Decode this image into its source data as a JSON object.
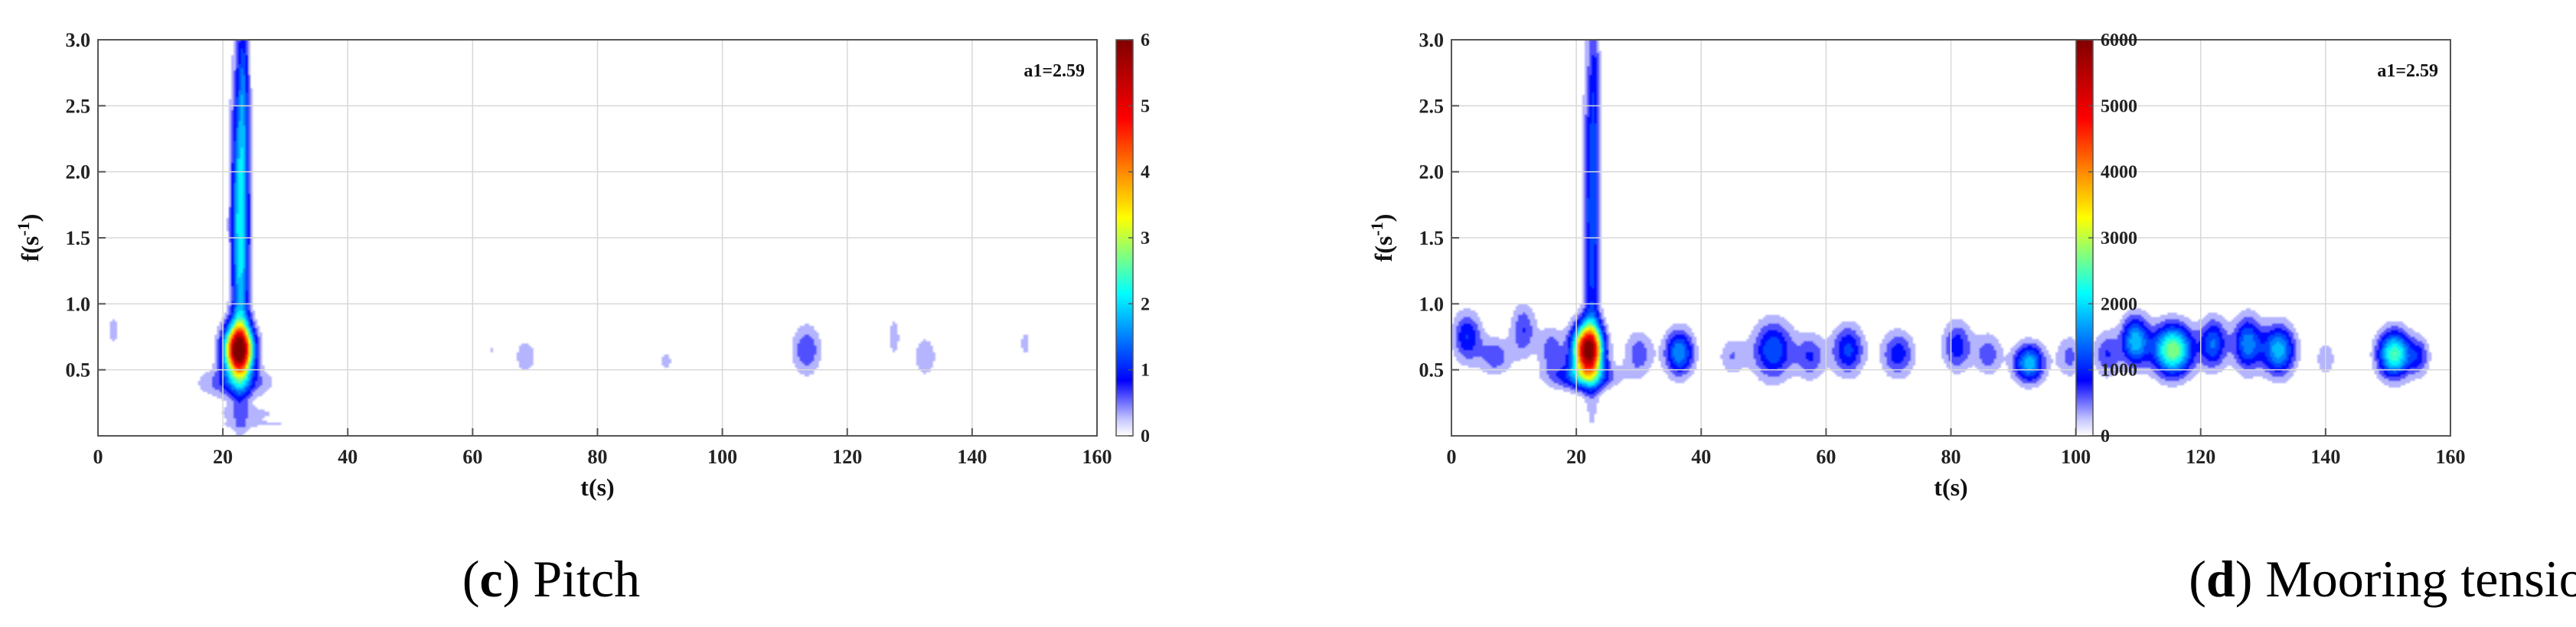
{
  "chart_data": [
    {
      "type": "heatmap",
      "panel_letter": "c",
      "caption": "Pitch",
      "xlabel": "t(s)",
      "ylabel_base": "f(s",
      "ylabel_exp": "-1",
      "ylabel_end": ")",
      "annotation": "a1=2.59",
      "xlim": [
        0,
        160
      ],
      "ylim": [
        0,
        3.0
      ],
      "xticks": [
        "0",
        "20",
        "40",
        "60",
        "80",
        "100",
        "120",
        "140",
        "160"
      ],
      "yticks": [
        "0.5",
        "1.0",
        "1.5",
        "2.0",
        "2.5",
        "3.0"
      ],
      "colorbar": {
        "range": [
          0,
          6
        ],
        "ticks": [
          "0",
          "1",
          "2",
          "3",
          "4",
          "5",
          "6"
        ]
      },
      "blobs": [
        {
          "t": 22.5,
          "f": 0.65,
          "st": 1.6,
          "sf": 0.13,
          "value": 6.0
        },
        {
          "t": 22.8,
          "f": 1.6,
          "st": 1.0,
          "sf": 0.8,
          "value": 2.4
        },
        {
          "t": 23.3,
          "f": 2.7,
          "st": 0.6,
          "sf": 0.4,
          "value": 0.8
        },
        {
          "t": 22.0,
          "f": 0.4,
          "st": 4.0,
          "sf": 0.08,
          "value": 0.9
        },
        {
          "t": 24.0,
          "f": 0.17,
          "st": 6.0,
          "sf": 0.05,
          "value": 0.35
        },
        {
          "t": 30.0,
          "f": 0.08,
          "st": 16.0,
          "sf": 0.03,
          "value": 0.25
        },
        {
          "t": 2.5,
          "f": 0.8,
          "st": 1.2,
          "sf": 0.14,
          "value": 0.35
        },
        {
          "t": 14.0,
          "f": 1.05,
          "st": 0.9,
          "sf": 0.12,
          "value": 0.3
        },
        {
          "t": 34.0,
          "f": 0.62,
          "st": 1.5,
          "sf": 0.1,
          "value": 0.3
        },
        {
          "t": 48.5,
          "f": 0.65,
          "st": 0.8,
          "sf": 0.1,
          "value": 0.28
        },
        {
          "t": 59.8,
          "f": 1.3,
          "st": 0.5,
          "sf": 0.3,
          "value": 0.25
        },
        {
          "t": 63.0,
          "f": 0.65,
          "st": 1.2,
          "sf": 0.1,
          "value": 0.3
        },
        {
          "t": 68.5,
          "f": 0.6,
          "st": 1.8,
          "sf": 0.13,
          "value": 0.4
        },
        {
          "t": 74.0,
          "f": 0.78,
          "st": 0.5,
          "sf": 0.08,
          "value": 0.28
        },
        {
          "t": 82.0,
          "f": 0.7,
          "st": 0.8,
          "sf": 0.12,
          "value": 0.3
        },
        {
          "t": 91.0,
          "f": 0.57,
          "st": 1.2,
          "sf": 0.1,
          "value": 0.35
        },
        {
          "t": 113.5,
          "f": 0.65,
          "st": 1.6,
          "sf": 0.13,
          "value": 0.9
        },
        {
          "t": 127.5,
          "f": 0.75,
          "st": 1.2,
          "sf": 0.2,
          "value": 0.35
        },
        {
          "t": 132.5,
          "f": 0.6,
          "st": 1.6,
          "sf": 0.14,
          "value": 0.45
        },
        {
          "t": 148.5,
          "f": 0.7,
          "st": 1.0,
          "sf": 0.12,
          "value": 0.35
        }
      ]
    },
    {
      "type": "heatmap",
      "panel_letter": "d",
      "caption": "Mooring tension",
      "xlabel": "t(s)",
      "ylabel_base": "f(s",
      "ylabel_exp": "-1",
      "ylabel_end": ")",
      "annotation": "a1=2.59",
      "xlim": [
        0,
        160
      ],
      "ylim": [
        0,
        3.0
      ],
      "xticks": [
        "0",
        "20",
        "40",
        "60",
        "80",
        "100",
        "120",
        "140",
        "160"
      ],
      "yticks": [
        "0.5",
        "1.0",
        "1.5",
        "2.0",
        "2.5",
        "3.0"
      ],
      "colorbar": {
        "range": [
          0,
          6000
        ],
        "ticks": [
          "0",
          "1000",
          "2000",
          "3000",
          "4000",
          "5000",
          "6000"
        ]
      },
      "blobs": [
        {
          "t": 21.8,
          "f": 0.65,
          "st": 1.6,
          "sf": 0.13,
          "value": 6000
        },
        {
          "t": 22.5,
          "f": 1.7,
          "st": 0.9,
          "sf": 0.9,
          "value": 1500
        },
        {
          "t": 23.0,
          "f": 2.7,
          "st": 0.5,
          "sf": 0.35,
          "value": 400
        },
        {
          "t": 21.0,
          "f": 0.45,
          "st": 3.5,
          "sf": 0.07,
          "value": 1400
        },
        {
          "t": 2.5,
          "f": 0.75,
          "st": 1.6,
          "sf": 0.13,
          "value": 1200
        },
        {
          "t": 7.0,
          "f": 0.6,
          "st": 1.8,
          "sf": 0.1,
          "value": 800
        },
        {
          "t": 11.5,
          "f": 0.8,
          "st": 1.4,
          "sf": 0.14,
          "value": 900
        },
        {
          "t": 16.0,
          "f": 0.65,
          "st": 1.4,
          "sf": 0.12,
          "value": 800
        },
        {
          "t": 30.0,
          "f": 0.62,
          "st": 1.6,
          "sf": 0.12,
          "value": 800
        },
        {
          "t": 36.5,
          "f": 0.63,
          "st": 1.6,
          "sf": 0.12,
          "value": 1800
        },
        {
          "t": 45.0,
          "f": 0.6,
          "st": 1.5,
          "sf": 0.1,
          "value": 600
        },
        {
          "t": 51.5,
          "f": 0.65,
          "st": 2.2,
          "sf": 0.15,
          "value": 1500
        },
        {
          "t": 57.5,
          "f": 0.6,
          "st": 1.6,
          "sf": 0.12,
          "value": 900
        },
        {
          "t": 63.5,
          "f": 0.65,
          "st": 1.8,
          "sf": 0.13,
          "value": 1300
        },
        {
          "t": 71.5,
          "f": 0.62,
          "st": 1.8,
          "sf": 0.12,
          "value": 1100
        },
        {
          "t": 81.0,
          "f": 0.68,
          "st": 1.6,
          "sf": 0.13,
          "value": 1100
        },
        {
          "t": 86.0,
          "f": 0.62,
          "st": 1.5,
          "sf": 0.11,
          "value": 800
        },
        {
          "t": 92.5,
          "f": 0.55,
          "st": 1.7,
          "sf": 0.1,
          "value": 2000
        },
        {
          "t": 99.0,
          "f": 0.6,
          "st": 1.5,
          "sf": 0.11,
          "value": 700
        },
        {
          "t": 105.0,
          "f": 0.62,
          "st": 1.5,
          "sf": 0.12,
          "value": 900
        },
        {
          "t": 109.5,
          "f": 0.72,
          "st": 1.5,
          "sf": 0.13,
          "value": 2000
        },
        {
          "t": 115.5,
          "f": 0.65,
          "st": 2.2,
          "sf": 0.13,
          "value": 3000
        },
        {
          "t": 122.0,
          "f": 0.7,
          "st": 1.5,
          "sf": 0.13,
          "value": 1500
        },
        {
          "t": 127.5,
          "f": 0.7,
          "st": 1.6,
          "sf": 0.14,
          "value": 1700
        },
        {
          "t": 132.5,
          "f": 0.65,
          "st": 1.8,
          "sf": 0.13,
          "value": 2000
        },
        {
          "t": 140.0,
          "f": 0.58,
          "st": 1.2,
          "sf": 0.1,
          "value": 500
        },
        {
          "t": 151.0,
          "f": 0.62,
          "st": 1.8,
          "sf": 0.12,
          "value": 2700
        },
        {
          "t": 155.0,
          "f": 0.6,
          "st": 1.2,
          "sf": 0.1,
          "value": 900
        }
      ]
    }
  ]
}
